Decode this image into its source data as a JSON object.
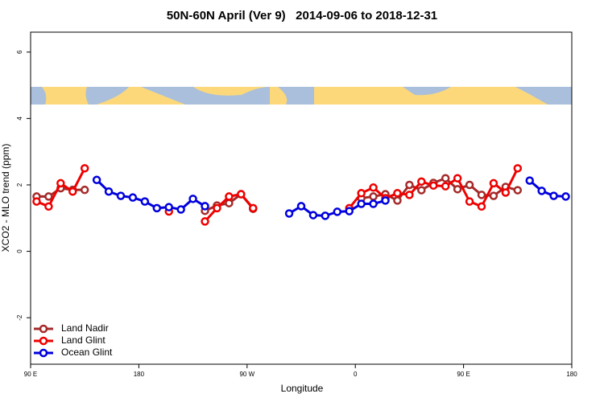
{
  "chart_data": {
    "type": "line",
    "title": "50N-60N April (Ver 9)   2014-09-06 to 2018-12-31",
    "x_label": "Longitude",
    "y_label": "XCO2 - MLO trend (ppm)",
    "xlim": [
      90,
      540
    ],
    "ylim": [
      -3.4,
      6.6
    ],
    "xticks": [
      {
        "value": 90,
        "label": "90 E"
      },
      180,
      {
        "value": 270,
        "label": "90 W"
      },
      {
        "value": 360,
        "label": "0"
      },
      {
        "value": 450,
        "label": "90 E"
      },
      {
        "value": 540,
        "label": "180"
      }
    ],
    "yticks": [
      -2,
      0,
      2,
      4,
      6
    ],
    "legend": "bottom-left",
    "series": [
      {
        "name": "Land Nadir",
        "color": "#a52a2a",
        "x": [
          95,
          105,
          115,
          125,
          135,
          185,
          235,
          245,
          255,
          265,
          275,
          320,
          365,
          375,
          385,
          395,
          405,
          415,
          425,
          435,
          445,
          455,
          465,
          475,
          485,
          495
        ],
        "values": [
          1.65,
          1.65,
          1.9,
          1.85,
          1.85,
          null,
          1.22,
          1.38,
          1.45,
          1.72,
          1.28,
          null,
          1.6,
          1.65,
          1.72,
          1.53,
          2.0,
          1.84,
          2.06,
          2.2,
          1.87,
          2.0,
          1.7,
          1.67,
          1.94,
          1.84
        ]
      },
      {
        "name": "Land Glint",
        "color": "#ee0000",
        "x": [
          95,
          105,
          115,
          125,
          135,
          170,
          205,
          220,
          235,
          245,
          255,
          265,
          275,
          315,
          355,
          365,
          375,
          385,
          395,
          405,
          415,
          425,
          435,
          445,
          455,
          465,
          475,
          485,
          495
        ],
        "values": [
          1.5,
          1.35,
          2.05,
          1.8,
          2.5,
          null,
          1.2,
          null,
          0.9,
          1.3,
          1.65,
          1.72,
          1.3,
          null,
          1.3,
          1.75,
          1.92,
          1.6,
          1.75,
          1.7,
          2.1,
          1.98,
          1.96,
          2.2,
          1.5,
          1.35,
          2.05,
          1.77,
          2.5
        ]
      },
      {
        "name": "Ocean Glint",
        "color": "#0000dd",
        "x": [
          145,
          155,
          165,
          175,
          185,
          195,
          205,
          215,
          225,
          235,
          270,
          305,
          315,
          325,
          335,
          345,
          355,
          365,
          375,
          385,
          445,
          505,
          515,
          525,
          535
        ],
        "values": [
          2.15,
          1.8,
          1.67,
          1.62,
          1.5,
          1.3,
          1.33,
          1.26,
          1.58,
          1.36,
          null,
          1.14,
          1.36,
          1.09,
          1.07,
          1.19,
          1.21,
          1.43,
          1.43,
          1.53,
          null,
          2.13,
          1.82,
          1.67,
          1.65
        ]
      }
    ]
  }
}
